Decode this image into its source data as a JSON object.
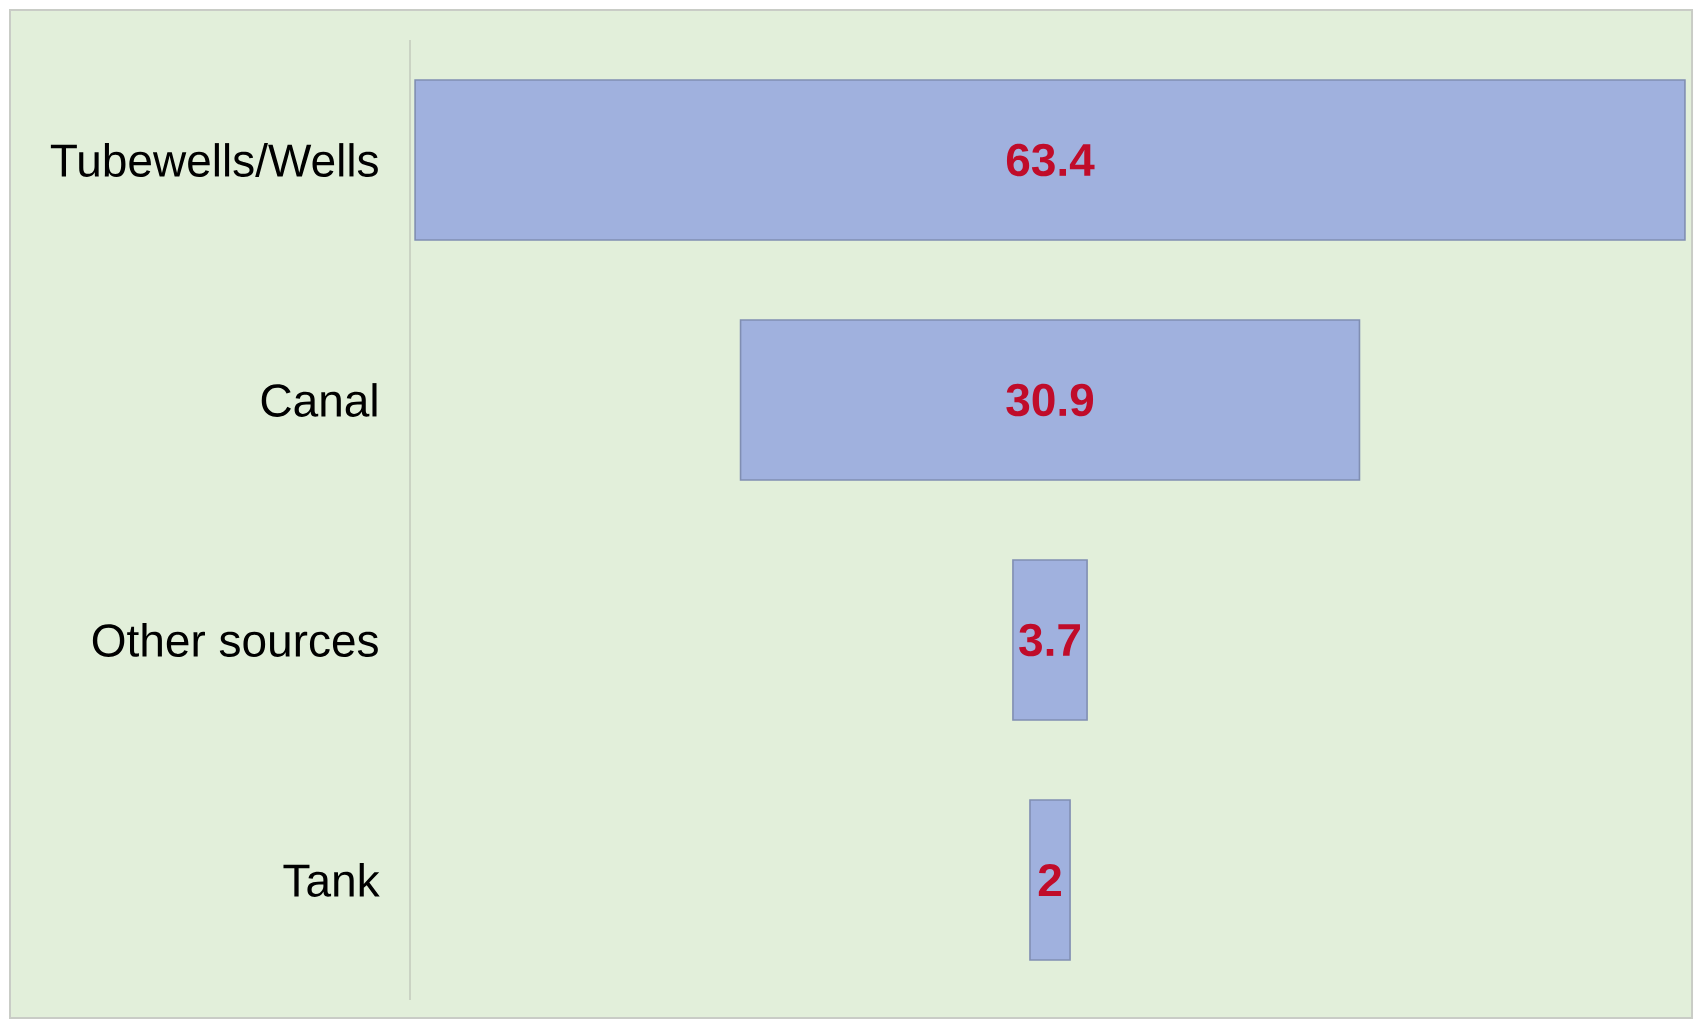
{
  "chart_data": {
    "type": "other",
    "categories": [
      "Tubewells/Wells",
      "Canal",
      "Other sources",
      "Tank"
    ],
    "values": [
      63.4,
      30.9,
      3.7,
      2
    ],
    "color": "#a0b1de",
    "data_labels": true
  }
}
